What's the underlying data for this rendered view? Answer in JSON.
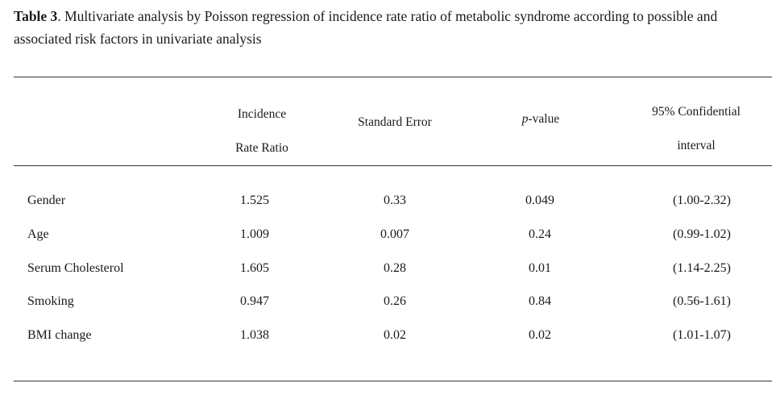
{
  "caption": {
    "label": "Table 3",
    "text": ". Multivariate analysis by Poisson regression of incidence rate ratio of metabolic syndrome according to possible and associated risk factors in univariate analysis"
  },
  "headers": {
    "irr_line1": "Incidence",
    "irr_line2": "Rate Ratio",
    "se": "Standard Error",
    "p_italic": "p",
    "p_rest": "-value",
    "ci_line1": "95% Confidential",
    "ci_line2": "interval"
  },
  "rows": [
    {
      "factor": "Gender",
      "irr": "1.525",
      "se": "0.33",
      "p": "0.049",
      "ci": "(1.00-2.32)"
    },
    {
      "factor": "Age",
      "irr": "1.009",
      "se": "0.007",
      "p": "0.24",
      "ci": "(0.99-1.02)"
    },
    {
      "factor": "Serum Cholesterol",
      "irr": "1.605",
      "se": "0.28",
      "p": "0.01",
      "ci": "(1.14-2.25)"
    },
    {
      "factor": "Smoking",
      "irr": "0.947",
      "se": "0.26",
      "p": "0.84",
      "ci": "(0.56-1.61)"
    },
    {
      "factor": "BMI change",
      "irr": "1.038",
      "se": "0.02",
      "p": "0.02",
      "ci": "(1.01-1.07)"
    }
  ]
}
